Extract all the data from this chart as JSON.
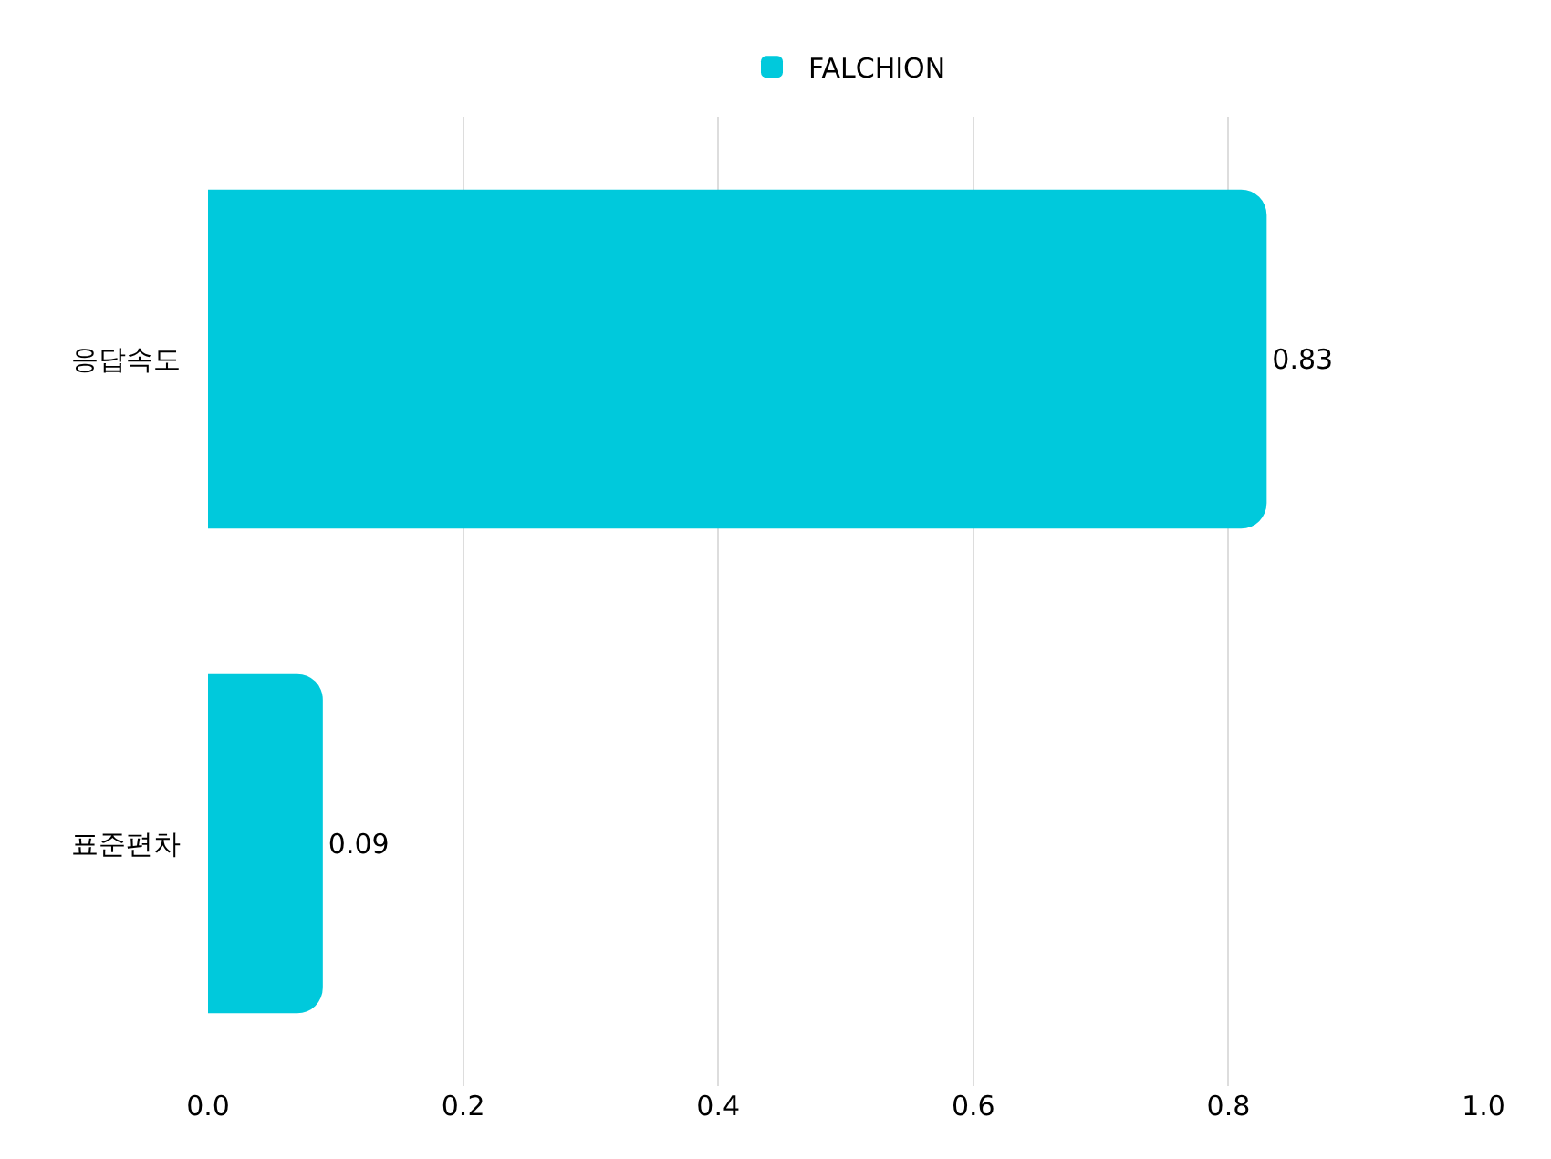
{
  "chart_data": {
    "type": "bar",
    "orientation": "horizontal",
    "categories": [
      "응답속도",
      "표준편차"
    ],
    "series": [
      {
        "name": "FALCHION",
        "color": "#00c9dc",
        "values": [
          0.83,
          0.09
        ]
      }
    ],
    "xlim": [
      0,
      1.0
    ],
    "xticks": [
      {
        "value": 0,
        "label": "0.0"
      },
      {
        "value": 0.2,
        "label": "0.2"
      },
      {
        "value": 0.4,
        "label": "0.4"
      },
      {
        "value": 0.6,
        "label": "0.6"
      },
      {
        "value": 0.8,
        "label": "0.8"
      },
      {
        "value": 1.0,
        "label": "1.0"
      }
    ],
    "grid": "x",
    "legend": "top",
    "data_labels": true
  }
}
